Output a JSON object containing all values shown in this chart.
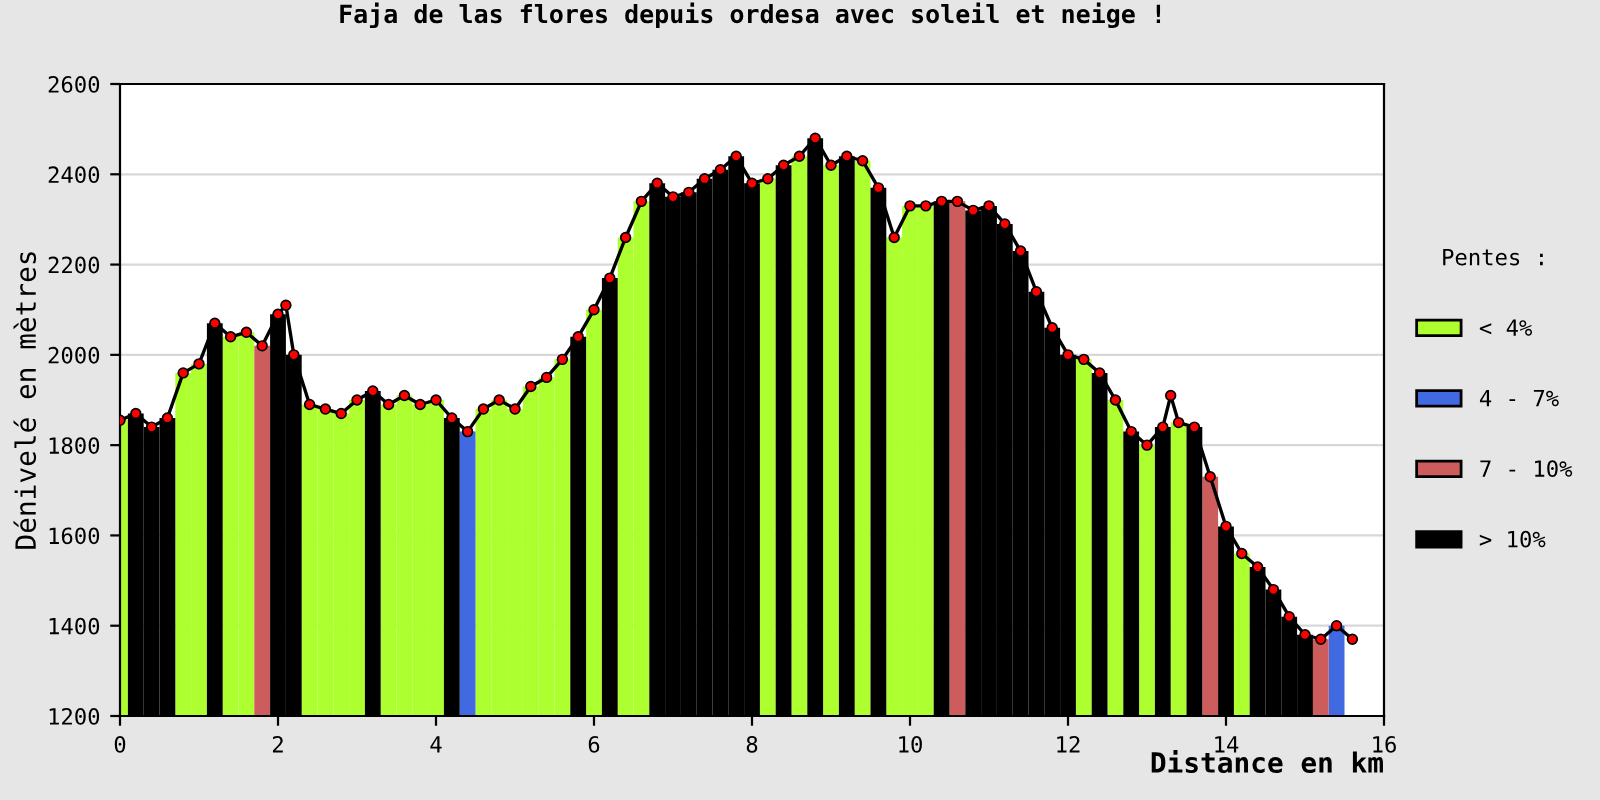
{
  "chart_data": {
    "type": "bar",
    "title": "Faja de las flores depuis ordesa avec soleil et neige !",
    "xlabel": "Distance en km",
    "ylabel": "Dénivelé en mètres",
    "legend_title": "Pentes :",
    "xlim": [
      0,
      16
    ],
    "xticks": [
      0,
      2,
      4,
      6,
      8,
      10,
      12,
      14,
      16
    ],
    "ylim": [
      1200,
      2600
    ],
    "yticks": [
      1200,
      1400,
      1600,
      1800,
      2000,
      2200,
      2400,
      2600
    ],
    "grid": "y",
    "legend": "right",
    "series": [
      {
        "name": "< 4%",
        "color": "#adff2f",
        "x": [
          0,
          0.8,
          1.0,
          1.4,
          1.6,
          2.4,
          2.6,
          2.8,
          3.0,
          3.4,
          3.6,
          3.8,
          4.0,
          4.6,
          4.8,
          5.0,
          5.2,
          5.4,
          5.6,
          6.0,
          6.4,
          6.6,
          8.2,
          8.6,
          9.0,
          9.4,
          9.8,
          10.0,
          10.2,
          12.2,
          12.6,
          13.0,
          13.4,
          14.2
        ],
        "values": [
          1855,
          1960,
          1980,
          2040,
          2050,
          1890,
          1880,
          1870,
          1900,
          1890,
          1910,
          1890,
          1900,
          1880,
          1900,
          1880,
          1930,
          1950,
          1990,
          2100,
          2260,
          2340,
          2390,
          2440,
          2420,
          2430,
          2260,
          2330,
          2330,
          1990,
          1900,
          1800,
          1850,
          1560
        ]
      },
      {
        "name": "4 - 7%",
        "color": "#4169e1",
        "x": [
          4.4,
          15.4
        ],
        "values": [
          1830,
          1400
        ]
      },
      {
        "name": "7 - 10%",
        "color": "#cd5c5c",
        "x": [
          1.8,
          10.6,
          13.8,
          15.2
        ],
        "values": [
          2020,
          2340,
          1730,
          1370
        ]
      },
      {
        "name": "> 10%",
        "color": "#000000",
        "x": [
          0.2,
          0.4,
          0.6,
          1.2,
          2.0,
          2.2,
          3.2,
          4.2,
          5.8,
          6.2,
          6.8,
          7.0,
          7.2,
          7.4,
          7.6,
          7.8,
          8.0,
          8.4,
          8.8,
          9.2,
          9.6,
          10.4,
          10.8,
          11.0,
          11.2,
          11.4,
          11.6,
          11.8,
          12.0,
          12.4,
          12.8,
          13.2,
          13.6,
          14.0,
          14.4,
          14.6,
          14.8,
          15.0
        ],
        "values": [
          1870,
          1840,
          1860,
          2070,
          2090,
          2000,
          1920,
          1860,
          2040,
          2170,
          2380,
          2350,
          2360,
          2390,
          2410,
          2440,
          2380,
          2420,
          2480,
          2440,
          2370,
          2340,
          2320,
          2330,
          2290,
          2230,
          2140,
          2060,
          2000,
          1960,
          1830,
          1840,
          1840,
          1620,
          1530,
          1480,
          1420,
          1380
        ]
      },
      {
        "type": "line",
        "color": "#ff0000",
        "marker": "circle",
        "x": [
          0,
          0.2,
          0.4,
          0.6,
          0.8,
          1.0,
          1.2,
          1.4,
          1.6,
          1.8,
          2.0,
          2.1,
          2.2,
          2.4,
          2.6,
          2.8,
          3.0,
          3.2,
          3.4,
          3.6,
          3.8,
          4.0,
          4.2,
          4.4,
          4.6,
          4.8,
          5.0,
          5.2,
          5.4,
          5.6,
          5.8,
          6.0,
          6.2,
          6.4,
          6.6,
          6.8,
          7.0,
          7.2,
          7.4,
          7.6,
          7.8,
          8.0,
          8.2,
          8.4,
          8.6,
          8.8,
          9.0,
          9.2,
          9.4,
          9.6,
          9.8,
          10.0,
          10.2,
          10.4,
          10.6,
          10.8,
          11.0,
          11.2,
          11.4,
          11.6,
          11.8,
          12.0,
          12.2,
          12.4,
          12.6,
          12.8,
          13.0,
          13.2,
          13.3,
          13.4,
          13.6,
          13.8,
          14.0,
          14.2,
          14.4,
          14.6,
          14.8,
          15.0,
          15.2,
          15.4,
          15.6
        ],
        "values": [
          1855,
          1870,
          1840,
          1860,
          1960,
          1980,
          2070,
          2040,
          2050,
          2020,
          2090,
          2110,
          2000,
          1890,
          1880,
          1870,
          1900,
          1920,
          1890,
          1910,
          1890,
          1900,
          1860,
          1830,
          1880,
          1900,
          1880,
          1930,
          1950,
          1990,
          2040,
          2100,
          2170,
          2260,
          2340,
          2380,
          2350,
          2360,
          2390,
          2410,
          2440,
          2380,
          2390,
          2420,
          2440,
          2480,
          2420,
          2440,
          2430,
          2370,
          2260,
          2330,
          2330,
          2340,
          2340,
          2320,
          2330,
          2290,
          2230,
          2140,
          2060,
          2000,
          1990,
          1960,
          1900,
          1830,
          1800,
          1840,
          1910,
          1850,
          1840,
          1730,
          1620,
          1560,
          1530,
          1480,
          1420,
          1380,
          1370,
          1400,
          1370
        ]
      }
    ]
  }
}
